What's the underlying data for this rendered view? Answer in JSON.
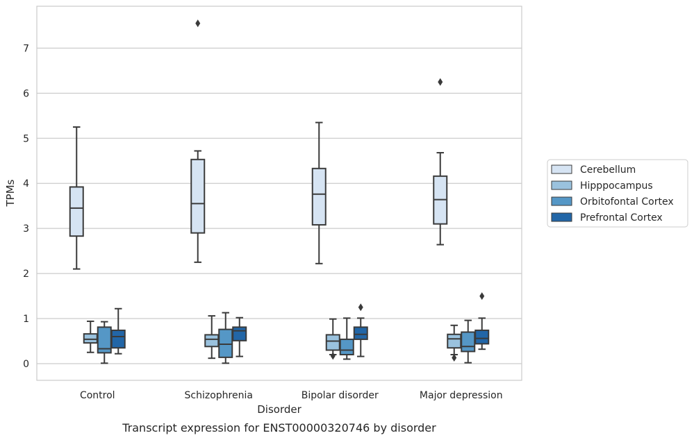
{
  "chart_data": {
    "type": "boxplot",
    "title": "",
    "caption": "Transcript expression for ENST00000320746 by disorder",
    "xlabel": "Disorder",
    "ylabel": "TPMs",
    "ylim": [
      -0.37,
      7.93
    ],
    "yticks": [
      0,
      1,
      2,
      3,
      4,
      5,
      6,
      7
    ],
    "grid": "horizontal",
    "legend_position": "right",
    "categories": [
      "Control",
      "Schizophrenia",
      "Bipolar disorder",
      "Major depression"
    ],
    "series": [
      {
        "name": "Cerebellum",
        "color": "#d6e4f3",
        "boxes": [
          {
            "whislo": 2.1,
            "q1": 2.83,
            "med": 3.45,
            "q3": 3.92,
            "whishi": 5.25,
            "fliers": []
          },
          {
            "whislo": 2.25,
            "q1": 2.9,
            "med": 3.55,
            "q3": 4.53,
            "whishi": 4.72,
            "fliers": [
              7.55
            ]
          },
          {
            "whislo": 2.22,
            "q1": 3.08,
            "med": 3.76,
            "q3": 4.33,
            "whishi": 5.35,
            "fliers": []
          },
          {
            "whislo": 2.64,
            "q1": 3.1,
            "med": 3.64,
            "q3": 4.16,
            "whishi": 4.68,
            "fliers": [
              6.25
            ]
          }
        ]
      },
      {
        "name": "Hipppocampus",
        "color": "#9ac2de",
        "boxes": [
          {
            "whislo": 0.25,
            "q1": 0.46,
            "med": 0.54,
            "q3": 0.66,
            "whishi": 0.94,
            "fliers": []
          },
          {
            "whislo": 0.12,
            "q1": 0.38,
            "med": 0.54,
            "q3": 0.64,
            "whishi": 1.06,
            "fliers": []
          },
          {
            "whislo": 0.2,
            "q1": 0.3,
            "med": 0.5,
            "q3": 0.64,
            "whishi": 0.99,
            "fliers": [
              0.17
            ]
          },
          {
            "whislo": 0.2,
            "q1": 0.35,
            "med": 0.55,
            "q3": 0.65,
            "whishi": 0.85,
            "fliers": [
              0.13
            ]
          }
        ]
      },
      {
        "name": "Orbitofontal Cortex",
        "color": "#5597c6",
        "boxes": [
          {
            "whislo": 0.01,
            "q1": 0.24,
            "med": 0.33,
            "q3": 0.81,
            "whishi": 0.93,
            "fliers": []
          },
          {
            "whislo": 0.01,
            "q1": 0.14,
            "med": 0.43,
            "q3": 0.76,
            "whishi": 1.13,
            "fliers": []
          },
          {
            "whislo": 0.1,
            "q1": 0.2,
            "med": 0.3,
            "q3": 0.54,
            "whishi": 1.01,
            "fliers": []
          },
          {
            "whislo": 0.02,
            "q1": 0.27,
            "med": 0.38,
            "q3": 0.7,
            "whishi": 0.96,
            "fliers": []
          }
        ]
      },
      {
        "name": "Prefrontal Cortex",
        "color": "#2266a7",
        "boxes": [
          {
            "whislo": 0.22,
            "q1": 0.35,
            "med": 0.6,
            "q3": 0.74,
            "whishi": 1.22,
            "fliers": []
          },
          {
            "whislo": 0.16,
            "q1": 0.51,
            "med": 0.73,
            "q3": 0.81,
            "whishi": 1.02,
            "fliers": []
          },
          {
            "whislo": 0.16,
            "q1": 0.54,
            "med": 0.65,
            "q3": 0.81,
            "whishi": 1.01,
            "fliers": [
              1.25
            ]
          },
          {
            "whislo": 0.32,
            "q1": 0.44,
            "med": 0.56,
            "q3": 0.74,
            "whishi": 1.01,
            "fliers": [
              1.5
            ]
          }
        ]
      }
    ]
  }
}
